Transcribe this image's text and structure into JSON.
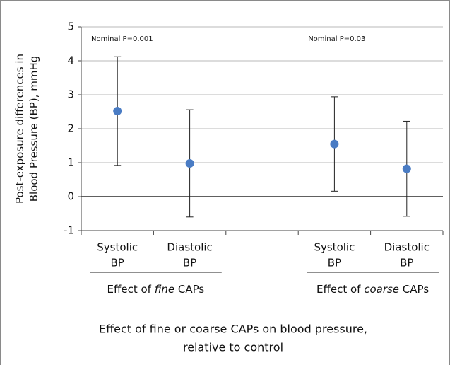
{
  "chart_data": {
    "type": "errorbar",
    "y_label": [
      "Post-exposure differences in",
      "Blood Pressure (BP), mmHg"
    ],
    "categories": [
      [
        "Systolic",
        "BP"
      ],
      [
        "Diastolic",
        "BP"
      ],
      null,
      [
        "Systolic",
        "BP"
      ],
      [
        "Diastolic",
        "BP"
      ]
    ],
    "series": [
      {
        "color": "#4a7cc4",
        "values": [
          2.52,
          0.98,
          null,
          1.55,
          0.82
        ],
        "errors": [
          1.6,
          1.58,
          null,
          1.39,
          1.4
        ]
      }
    ],
    "annotations": [
      "Nominal P=0.001",
      "Nominal P=0.03"
    ],
    "groups": [
      [
        "Effect of ",
        "fine",
        " CAPs"
      ],
      [
        "Effect of ",
        "coarse",
        " CAPs"
      ]
    ],
    "caption": [
      "Effect of fine or coarse CAPs on blood pressure,",
      "relative to control"
    ],
    "ylim": [
      -1,
      5
    ],
    "yticks": [
      -1,
      0,
      1,
      2,
      3,
      4,
      5
    ],
    "grid": true
  }
}
